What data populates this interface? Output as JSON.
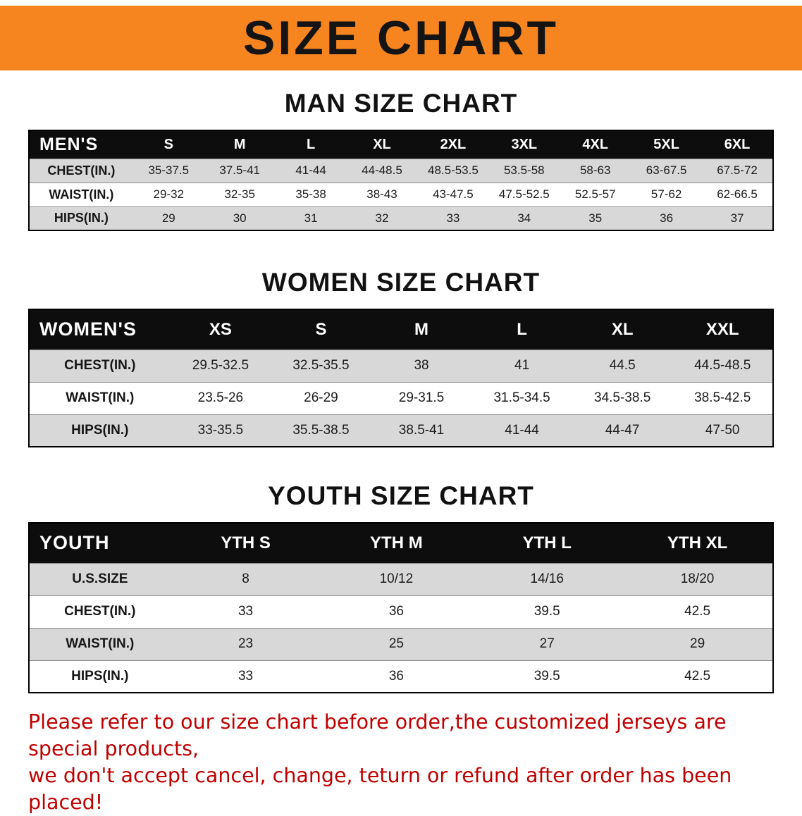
{
  "banner": {
    "title": "SIZE CHART"
  },
  "chart_data": [
    {
      "type": "table",
      "title": "MAN SIZE CHART",
      "header": [
        "MEN'S",
        "S",
        "M",
        "L",
        "XL",
        "2XL",
        "3XL",
        "4XL",
        "5XL",
        "6XL"
      ],
      "rows": [
        [
          "CHEST(IN.)",
          "35-37.5",
          "37.5-41",
          "41-44",
          "44-48.5",
          "48.5-53.5",
          "53.5-58",
          "58-63",
          "63-67.5",
          "67.5-72"
        ],
        [
          "WAIST(IN.)",
          "29-32",
          "32-35",
          "35-38",
          "38-43",
          "43-47.5",
          "47.5-52.5",
          "52.5-57",
          "57-62",
          "62-66.5"
        ],
        [
          "HIPS(IN.)",
          "29",
          "30",
          "31",
          "32",
          "33",
          "34",
          "35",
          "36",
          "37"
        ]
      ]
    },
    {
      "type": "table",
      "title": "WOMEN SIZE CHART",
      "header": [
        "WOMEN'S",
        "XS",
        "S",
        "M",
        "L",
        "XL",
        "XXL"
      ],
      "rows": [
        [
          "CHEST(IN.)",
          "29.5-32.5",
          "32.5-35.5",
          "38",
          "41",
          "44.5",
          "44.5-48.5"
        ],
        [
          "WAIST(IN.)",
          "23.5-26",
          "26-29",
          "29-31.5",
          "31.5-34.5",
          "34.5-38.5",
          "38.5-42.5"
        ],
        [
          "HIPS(IN.)",
          "33-35.5",
          "35.5-38.5",
          "38.5-41",
          "41-44",
          "44-47",
          "47-50"
        ]
      ]
    },
    {
      "type": "table",
      "title": "YOUTH SIZE CHART",
      "header": [
        "YOUTH",
        "YTH S",
        "YTH M",
        "YTH L",
        "YTH XL"
      ],
      "rows": [
        [
          "U.S.SIZE",
          "8",
          "10/12",
          "14/16",
          "18/20"
        ],
        [
          "CHEST(IN.)",
          "33",
          "36",
          "39.5",
          "42.5"
        ],
        [
          "WAIST(IN.)",
          "23",
          "25",
          "27",
          "29"
        ],
        [
          "HIPS(IN.)",
          "33",
          "36",
          "39.5",
          "42.5"
        ]
      ]
    }
  ],
  "footer": {
    "lines": [
      "Please refer to our size chart before order,the customized jerseys are special products,",
      "we don't accept cancel, change, teturn or refund after order has been placed!"
    ]
  },
  "colors": {
    "banner-bg": "#F6851F",
    "table-header-bg": "#0D0D0D",
    "table-header-text": "#FFFFFF",
    "row-alt-bg": "#D8D8D8",
    "title-text": "#111111",
    "footer-text": "#C00000"
  }
}
